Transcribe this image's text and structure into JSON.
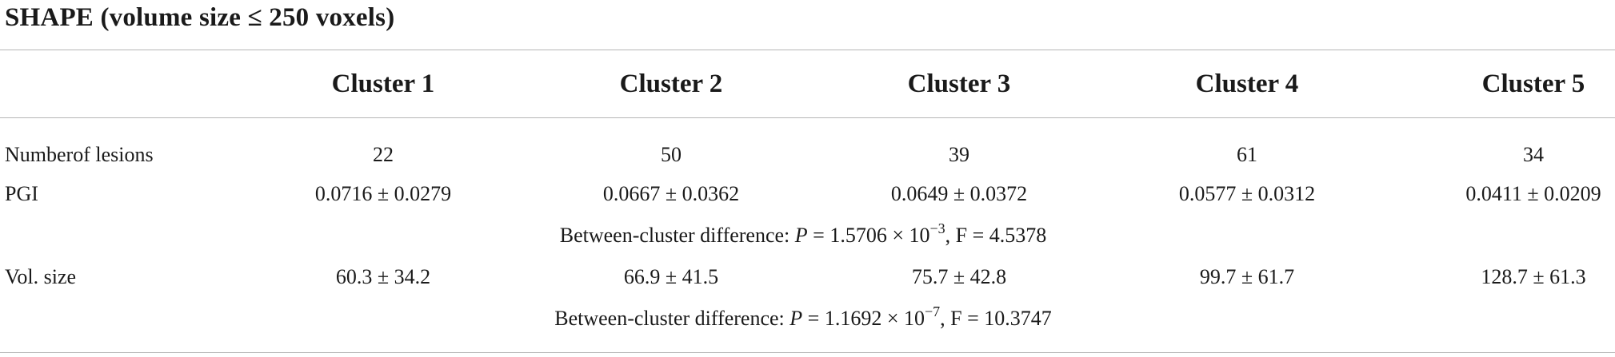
{
  "table": {
    "title": "SHAPE (volume size ≤ 250 voxels)",
    "columns": [
      "Cluster 1",
      "Cluster 2",
      "Cluster 3",
      "Cluster 4",
      "Cluster 5"
    ],
    "rows": [
      {
        "label": "Numberof lesions",
        "values": [
          "22",
          "50",
          "39",
          "61",
          "34"
        ]
      },
      {
        "label": "PGI",
        "values": [
          "0.0716 ± 0.0279",
          "0.0667 ± 0.0362",
          "0.0649 ± 0.0372",
          "0.0577 ± 0.0312",
          "0.0411 ± 0.0209"
        ]
      },
      {
        "label": "Vol. size",
        "values": [
          "60.3 ± 34.2",
          "66.9 ± 41.5",
          "75.7 ± 42.8",
          "99.7 ± 61.7",
          "128.7 ± 61.3"
        ]
      }
    ],
    "notes": {
      "pgi": {
        "prefix": "Between-cluster difference: ",
        "p_symbol": "P",
        "p_value": " = 1.5706 × 10",
        "exponent": "−3",
        "suffix": ", F = 4.5378"
      },
      "vol": {
        "prefix": "Between-cluster difference: ",
        "p_symbol": "P",
        "p_value": " = 1.1692 × 10",
        "exponent": "−7",
        "suffix": ", F = 10.3747"
      }
    }
  }
}
